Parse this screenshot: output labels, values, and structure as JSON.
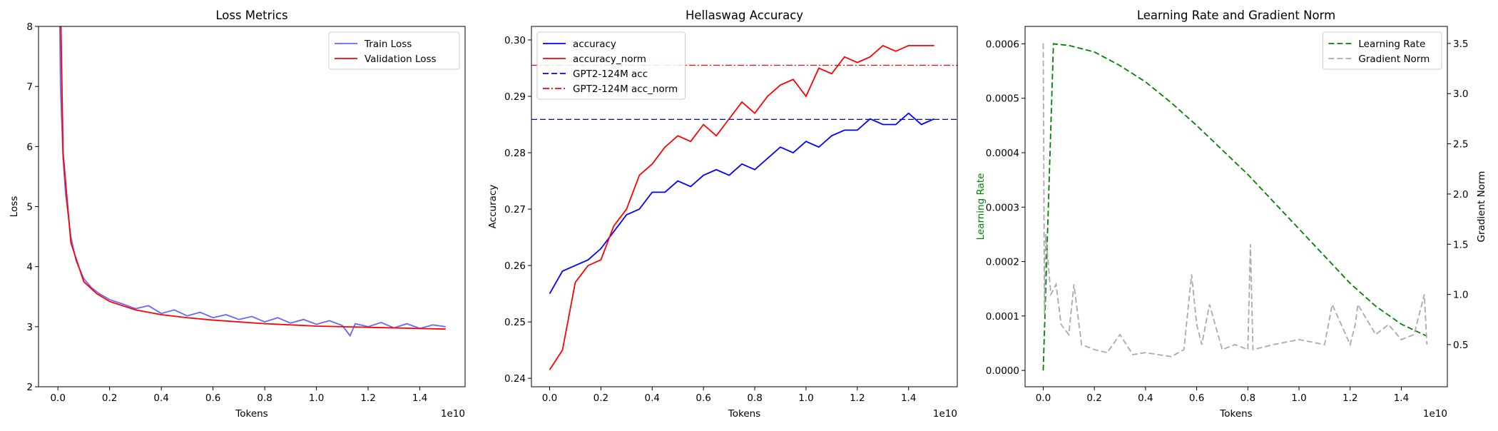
{
  "chart_data": [
    {
      "type": "line",
      "title": "Loss Metrics",
      "xlabel": "Tokens",
      "ylabel": "Loss",
      "x_offset_label": "1e10",
      "xlim": [
        -0.075,
        1.575
      ],
      "xticks": [
        {
          "value": 0,
          "label": "0.0"
        },
        0.2,
        0.4,
        0.6,
        0.8,
        {
          "value": 1,
          "label": "1.0"
        },
        1.2,
        1.4
      ],
      "ylim": [
        2,
        8
      ],
      "yticks": [
        2,
        3,
        4,
        5,
        6,
        7,
        8
      ],
      "legend": "upper right",
      "series": [
        {
          "name": "Train Loss",
          "color": "#6666ff",
          "linestyle": "solid",
          "x": [
            0,
            0.01,
            0.02,
            0.03,
            0.05,
            0.07,
            0.1,
            0.13,
            0.16,
            0.2,
            0.25,
            0.3,
            0.35,
            0.4,
            0.45,
            0.5,
            0.55,
            0.6,
            0.65,
            0.7,
            0.75,
            0.8,
            0.85,
            0.9,
            0.95,
            1.0,
            1.05,
            1.1,
            1.13,
            1.15,
            1.2,
            1.25,
            1.3,
            1.35,
            1.4,
            1.45,
            1.5
          ],
          "values": [
            10.9,
            7.0,
            5.8,
            5.2,
            4.5,
            4.1,
            3.8,
            3.65,
            3.55,
            3.45,
            3.38,
            3.3,
            3.35,
            3.22,
            3.28,
            3.18,
            3.24,
            3.15,
            3.2,
            3.12,
            3.17,
            3.08,
            3.15,
            3.06,
            3.12,
            3.04,
            3.1,
            3.02,
            2.85,
            3.05,
            3.0,
            3.07,
            2.98,
            3.05,
            2.97,
            3.03,
            3.0
          ]
        },
        {
          "name": "Validation Loss",
          "color": "#ff0000",
          "linestyle": "solid",
          "x": [
            0,
            0.02,
            0.05,
            0.1,
            0.15,
            0.2,
            0.3,
            0.4,
            0.5,
            0.6,
            0.8,
            1.0,
            1.2,
            1.4,
            1.5
          ],
          "values": [
            11.0,
            5.9,
            4.4,
            3.75,
            3.55,
            3.42,
            3.28,
            3.2,
            3.15,
            3.11,
            3.05,
            3.01,
            2.99,
            2.97,
            2.96
          ]
        }
      ]
    },
    {
      "type": "line",
      "title": "Hellaswag Accuracy",
      "xlabel": "Tokens",
      "ylabel": "Accuracy",
      "x_offset_label": "1e10",
      "xlim": [
        -0.071,
        1.59
      ],
      "xticks": [
        {
          "value": 0,
          "label": "0.0"
        },
        0.2,
        0.4,
        0.6,
        0.8,
        {
          "value": 1,
          "label": "1.0"
        },
        1.2,
        1.4
      ],
      "ylim": [
        0.2385,
        0.3024
      ],
      "yticks": [
        0.24,
        0.25,
        0.26,
        0.27,
        0.28,
        0.29,
        {
          "value": 0.3,
          "label": "0.30"
        }
      ],
      "legend": "upper left",
      "series": [
        {
          "name": "accuracy",
          "color": "#0000ff",
          "linestyle": "solid",
          "x": [
            0,
            0.05,
            0.1,
            0.15,
            0.2,
            0.25,
            0.3,
            0.35,
            0.4,
            0.45,
            0.5,
            0.55,
            0.6,
            0.65,
            0.7,
            0.75,
            0.8,
            0.85,
            0.9,
            0.95,
            1.0,
            1.05,
            1.1,
            1.15,
            1.2,
            1.25,
            1.3,
            1.35,
            1.4,
            1.45,
            1.5
          ],
          "values": [
            0.255,
            0.259,
            0.26,
            0.261,
            0.263,
            0.266,
            0.269,
            0.27,
            0.273,
            0.273,
            0.275,
            0.274,
            0.276,
            0.277,
            0.276,
            0.278,
            0.277,
            0.279,
            0.281,
            0.28,
            0.282,
            0.281,
            0.283,
            0.284,
            0.284,
            0.286,
            0.285,
            0.285,
            0.287,
            0.285,
            0.286
          ]
        },
        {
          "name": "accuracy_norm",
          "color": "#ff0000",
          "linestyle": "solid",
          "x": [
            0,
            0.05,
            0.1,
            0.15,
            0.2,
            0.25,
            0.3,
            0.35,
            0.4,
            0.45,
            0.5,
            0.55,
            0.6,
            0.65,
            0.7,
            0.75,
            0.8,
            0.85,
            0.9,
            0.95,
            1.0,
            1.05,
            1.1,
            1.15,
            1.2,
            1.25,
            1.3,
            1.35,
            1.4,
            1.45,
            1.5
          ],
          "values": [
            0.2415,
            0.245,
            0.257,
            0.26,
            0.261,
            0.267,
            0.27,
            0.276,
            0.278,
            0.281,
            0.283,
            0.282,
            0.285,
            0.283,
            0.286,
            0.289,
            0.287,
            0.29,
            0.292,
            0.293,
            0.29,
            0.295,
            0.294,
            0.297,
            0.296,
            0.297,
            0.299,
            0.298,
            0.299,
            0.299,
            0.299
          ]
        }
      ],
      "hlines": [
        {
          "name": "GPT2-124M acc",
          "color": "#0000ff",
          "linestyle": "dashed",
          "value": 0.2859
        },
        {
          "name": "GPT2-124M acc_norm",
          "color": "#ff0000",
          "linestyle": "dashdot",
          "value": 0.2955
        }
      ]
    },
    {
      "type": "line",
      "title": "Learning Rate and Gradient Norm",
      "xlabel": "Tokens",
      "ylabel": "Learning Rate",
      "ylabel_color": "#008000",
      "y2label": "Gradient Norm",
      "x_offset_label": "1e10",
      "xlim": [
        -0.071,
        1.58
      ],
      "xticks": [
        {
          "value": 0,
          "label": "0.0"
        },
        0.2,
        0.4,
        0.6,
        0.8,
        {
          "value": 1,
          "label": "1.0"
        },
        1.2,
        1.4
      ],
      "ylim": [
        -3e-05,
        0.000632
      ],
      "yticks": [
        {
          "value": 0,
          "label": "0.0000"
        },
        {
          "value": 0.0001,
          "label": "0.0001"
        },
        {
          "value": 0.0002,
          "label": "0.0002"
        },
        {
          "value": 0.0003,
          "label": "0.0003"
        },
        {
          "value": 0.0004,
          "label": "0.0004"
        },
        {
          "value": 0.0005,
          "label": "0.0005"
        },
        {
          "value": 0.0006,
          "label": "0.0006"
        }
      ],
      "y2lim": [
        0.08,
        3.67
      ],
      "y2ticks": [
        0.5,
        {
          "value": 1,
          "label": "1.0"
        },
        1.5,
        {
          "value": 2,
          "label": "2.0"
        },
        2.5,
        {
          "value": 3,
          "label": "3.0"
        },
        3.5
      ],
      "legend": "upper right",
      "series": [
        {
          "name": "Learning Rate",
          "color": "#008000",
          "linestyle": "dashed",
          "x": [
            0,
            0.04,
            0.1,
            0.2,
            0.3,
            0.4,
            0.5,
            0.6,
            0.7,
            0.8,
            0.9,
            1.0,
            1.1,
            1.2,
            1.3,
            1.4,
            1.5
          ],
          "values": [
            0,
            0.0006,
            0.000597,
            0.000585,
            0.00056,
            0.00053,
            0.000492,
            0.00045,
            0.000405,
            0.00036,
            0.00031,
            0.00026,
            0.00021,
            0.00016,
            0.000118,
            8.5e-05,
            6.3e-05
          ]
        },
        {
          "name": "Gradient Norm",
          "color": "#aaaaaa",
          "linestyle": "dashed",
          "axis": "y2",
          "x": [
            0,
            0.005,
            0.01,
            0.02,
            0.03,
            0.05,
            0.07,
            0.1,
            0.12,
            0.15,
            0.2,
            0.25,
            0.3,
            0.35,
            0.4,
            0.45,
            0.5,
            0.55,
            0.58,
            0.6,
            0.62,
            0.65,
            0.7,
            0.75,
            0.8,
            0.81,
            0.82,
            0.9,
            1.0,
            1.1,
            1.13,
            1.2,
            1.22,
            1.23,
            1.3,
            1.35,
            1.4,
            1.45,
            1.49,
            1.5
          ],
          "values": [
            3.5,
            0.8,
            1.6,
            1.3,
            1.0,
            1.1,
            0.7,
            0.6,
            1.1,
            0.5,
            0.45,
            0.42,
            0.6,
            0.4,
            0.42,
            0.4,
            0.38,
            0.45,
            1.2,
            0.7,
            0.5,
            0.9,
            0.45,
            0.5,
            0.45,
            1.5,
            0.45,
            0.5,
            0.55,
            0.5,
            0.9,
            0.5,
            0.7,
            0.9,
            0.6,
            0.7,
            0.55,
            0.6,
            1.0,
            0.5
          ]
        }
      ]
    }
  ]
}
